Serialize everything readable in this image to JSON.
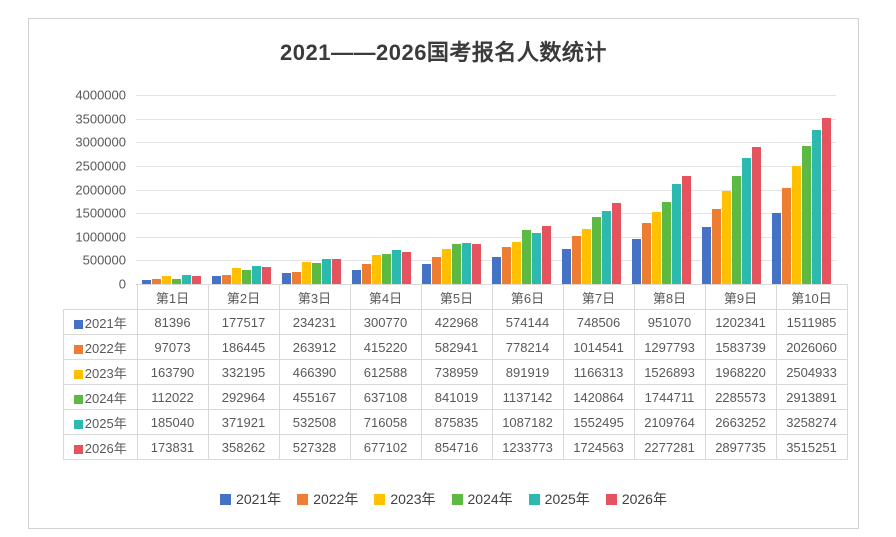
{
  "title": "2021——2026国考报名人数统计",
  "chart_data": {
    "type": "bar",
    "title": "2021——2026国考报名人数统计",
    "categories": [
      "第1日",
      "第2日",
      "第3日",
      "第4日",
      "第5日",
      "第6日",
      "第7日",
      "第8日",
      "第9日",
      "第10日"
    ],
    "series": [
      {
        "name": "2021年",
        "color": "#4472C4",
        "values": [
          81396,
          177517,
          234231,
          300770,
          422968,
          574144,
          748506,
          951070,
          1202341,
          1511985
        ]
      },
      {
        "name": "2022年",
        "color": "#ED7D31",
        "values": [
          97073,
          186445,
          263912,
          415220,
          582941,
          778214,
          1014541,
          1297793,
          1583739,
          2026060
        ]
      },
      {
        "name": "2023年",
        "color": "#FFC000",
        "values": [
          163790,
          332195,
          466390,
          612588,
          738959,
          891919,
          1166313,
          1526893,
          1968220,
          2504933
        ]
      },
      {
        "name": "2024年",
        "color": "#5CB943",
        "values": [
          112022,
          292964,
          455167,
          637108,
          841019,
          1137142,
          1420864,
          1744711,
          2285573,
          2913891
        ]
      },
      {
        "name": "2025年",
        "color": "#2BB9B0",
        "values": [
          185040,
          371921,
          532508,
          716058,
          875835,
          1087182,
          1552495,
          2109764,
          2663252,
          3258274
        ]
      },
      {
        "name": "2026年",
        "color": "#E4535E",
        "values": [
          173831,
          358262,
          527328,
          677102,
          854716,
          1233773,
          1724563,
          2277281,
          2897735,
          3515251
        ]
      }
    ],
    "ylim": [
      0,
      4000000
    ],
    "yticks": [
      0,
      500000,
      1000000,
      1500000,
      2000000,
      2500000,
      3000000,
      3500000,
      4000000
    ],
    "grid": "horizontal",
    "legend_position": "bottom",
    "show_data_table": true
  }
}
